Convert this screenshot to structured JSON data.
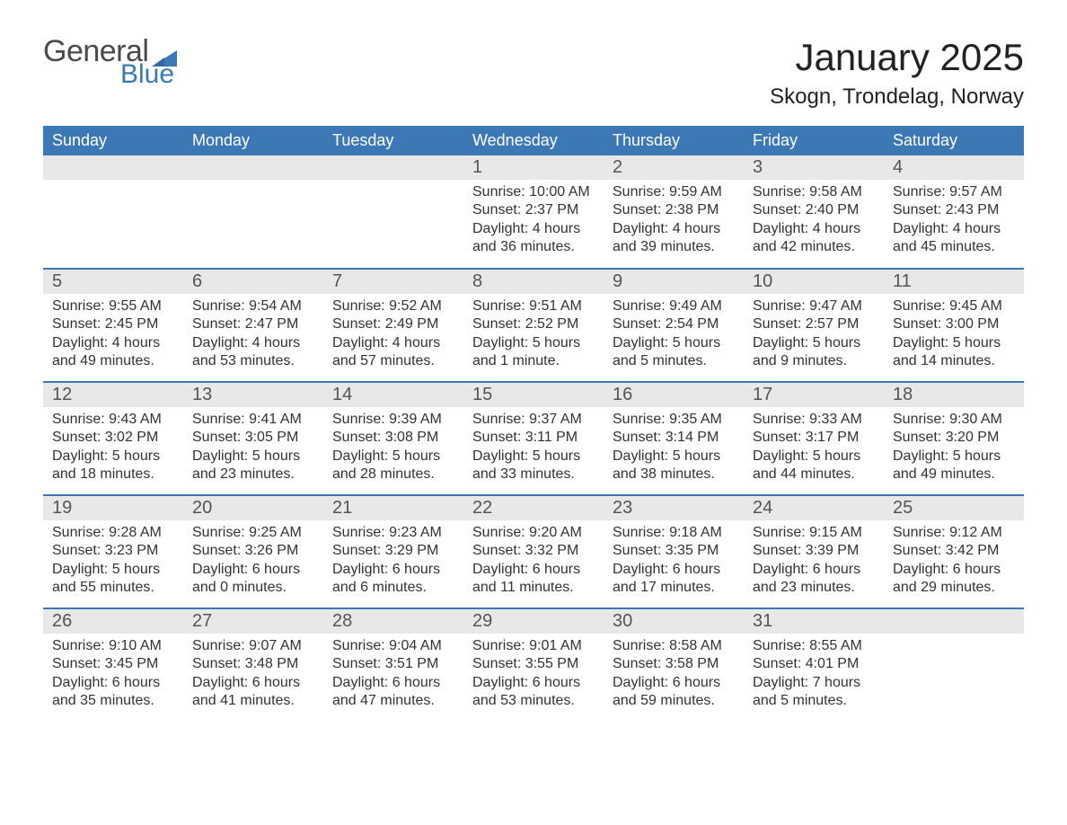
{
  "logo": {
    "word1": "General",
    "word2": "Blue"
  },
  "colors": {
    "header_bg": "#3b78b5",
    "header_text": "#ffffff",
    "row_border": "#3b78b5",
    "daynum_bg": "#e8e8e8",
    "text": "#333333",
    "logo_gray": "#4a4a4a",
    "logo_blue": "#3b78b5",
    "page_bg": "#ffffff"
  },
  "typography": {
    "title_fontsize": 42,
    "location_fontsize": 24,
    "weekday_fontsize": 18,
    "daynum_fontsize": 20,
    "body_fontsize": 16
  },
  "title": {
    "month": "January 2025",
    "location": "Skogn, Trondelag, Norway"
  },
  "weekdays": [
    "Sunday",
    "Monday",
    "Tuesday",
    "Wednesday",
    "Thursday",
    "Friday",
    "Saturday"
  ],
  "weeks": [
    [
      null,
      null,
      null,
      {
        "d": "1",
        "sunrise": "Sunrise: 10:00 AM",
        "sunset": "Sunset: 2:37 PM",
        "dl1": "Daylight: 4 hours",
        "dl2": "and 36 minutes."
      },
      {
        "d": "2",
        "sunrise": "Sunrise: 9:59 AM",
        "sunset": "Sunset: 2:38 PM",
        "dl1": "Daylight: 4 hours",
        "dl2": "and 39 minutes."
      },
      {
        "d": "3",
        "sunrise": "Sunrise: 9:58 AM",
        "sunset": "Sunset: 2:40 PM",
        "dl1": "Daylight: 4 hours",
        "dl2": "and 42 minutes."
      },
      {
        "d": "4",
        "sunrise": "Sunrise: 9:57 AM",
        "sunset": "Sunset: 2:43 PM",
        "dl1": "Daylight: 4 hours",
        "dl2": "and 45 minutes."
      }
    ],
    [
      {
        "d": "5",
        "sunrise": "Sunrise: 9:55 AM",
        "sunset": "Sunset: 2:45 PM",
        "dl1": "Daylight: 4 hours",
        "dl2": "and 49 minutes."
      },
      {
        "d": "6",
        "sunrise": "Sunrise: 9:54 AM",
        "sunset": "Sunset: 2:47 PM",
        "dl1": "Daylight: 4 hours",
        "dl2": "and 53 minutes."
      },
      {
        "d": "7",
        "sunrise": "Sunrise: 9:52 AM",
        "sunset": "Sunset: 2:49 PM",
        "dl1": "Daylight: 4 hours",
        "dl2": "and 57 minutes."
      },
      {
        "d": "8",
        "sunrise": "Sunrise: 9:51 AM",
        "sunset": "Sunset: 2:52 PM",
        "dl1": "Daylight: 5 hours",
        "dl2": "and 1 minute."
      },
      {
        "d": "9",
        "sunrise": "Sunrise: 9:49 AM",
        "sunset": "Sunset: 2:54 PM",
        "dl1": "Daylight: 5 hours",
        "dl2": "and 5 minutes."
      },
      {
        "d": "10",
        "sunrise": "Sunrise: 9:47 AM",
        "sunset": "Sunset: 2:57 PM",
        "dl1": "Daylight: 5 hours",
        "dl2": "and 9 minutes."
      },
      {
        "d": "11",
        "sunrise": "Sunrise: 9:45 AM",
        "sunset": "Sunset: 3:00 PM",
        "dl1": "Daylight: 5 hours",
        "dl2": "and 14 minutes."
      }
    ],
    [
      {
        "d": "12",
        "sunrise": "Sunrise: 9:43 AM",
        "sunset": "Sunset: 3:02 PM",
        "dl1": "Daylight: 5 hours",
        "dl2": "and 18 minutes."
      },
      {
        "d": "13",
        "sunrise": "Sunrise: 9:41 AM",
        "sunset": "Sunset: 3:05 PM",
        "dl1": "Daylight: 5 hours",
        "dl2": "and 23 minutes."
      },
      {
        "d": "14",
        "sunrise": "Sunrise: 9:39 AM",
        "sunset": "Sunset: 3:08 PM",
        "dl1": "Daylight: 5 hours",
        "dl2": "and 28 minutes."
      },
      {
        "d": "15",
        "sunrise": "Sunrise: 9:37 AM",
        "sunset": "Sunset: 3:11 PM",
        "dl1": "Daylight: 5 hours",
        "dl2": "and 33 minutes."
      },
      {
        "d": "16",
        "sunrise": "Sunrise: 9:35 AM",
        "sunset": "Sunset: 3:14 PM",
        "dl1": "Daylight: 5 hours",
        "dl2": "and 38 minutes."
      },
      {
        "d": "17",
        "sunrise": "Sunrise: 9:33 AM",
        "sunset": "Sunset: 3:17 PM",
        "dl1": "Daylight: 5 hours",
        "dl2": "and 44 minutes."
      },
      {
        "d": "18",
        "sunrise": "Sunrise: 9:30 AM",
        "sunset": "Sunset: 3:20 PM",
        "dl1": "Daylight: 5 hours",
        "dl2": "and 49 minutes."
      }
    ],
    [
      {
        "d": "19",
        "sunrise": "Sunrise: 9:28 AM",
        "sunset": "Sunset: 3:23 PM",
        "dl1": "Daylight: 5 hours",
        "dl2": "and 55 minutes."
      },
      {
        "d": "20",
        "sunrise": "Sunrise: 9:25 AM",
        "sunset": "Sunset: 3:26 PM",
        "dl1": "Daylight: 6 hours",
        "dl2": "and 0 minutes."
      },
      {
        "d": "21",
        "sunrise": "Sunrise: 9:23 AM",
        "sunset": "Sunset: 3:29 PM",
        "dl1": "Daylight: 6 hours",
        "dl2": "and 6 minutes."
      },
      {
        "d": "22",
        "sunrise": "Sunrise: 9:20 AM",
        "sunset": "Sunset: 3:32 PM",
        "dl1": "Daylight: 6 hours",
        "dl2": "and 11 minutes."
      },
      {
        "d": "23",
        "sunrise": "Sunrise: 9:18 AM",
        "sunset": "Sunset: 3:35 PM",
        "dl1": "Daylight: 6 hours",
        "dl2": "and 17 minutes."
      },
      {
        "d": "24",
        "sunrise": "Sunrise: 9:15 AM",
        "sunset": "Sunset: 3:39 PM",
        "dl1": "Daylight: 6 hours",
        "dl2": "and 23 minutes."
      },
      {
        "d": "25",
        "sunrise": "Sunrise: 9:12 AM",
        "sunset": "Sunset: 3:42 PM",
        "dl1": "Daylight: 6 hours",
        "dl2": "and 29 minutes."
      }
    ],
    [
      {
        "d": "26",
        "sunrise": "Sunrise: 9:10 AM",
        "sunset": "Sunset: 3:45 PM",
        "dl1": "Daylight: 6 hours",
        "dl2": "and 35 minutes."
      },
      {
        "d": "27",
        "sunrise": "Sunrise: 9:07 AM",
        "sunset": "Sunset: 3:48 PM",
        "dl1": "Daylight: 6 hours",
        "dl2": "and 41 minutes."
      },
      {
        "d": "28",
        "sunrise": "Sunrise: 9:04 AM",
        "sunset": "Sunset: 3:51 PM",
        "dl1": "Daylight: 6 hours",
        "dl2": "and 47 minutes."
      },
      {
        "d": "29",
        "sunrise": "Sunrise: 9:01 AM",
        "sunset": "Sunset: 3:55 PM",
        "dl1": "Daylight: 6 hours",
        "dl2": "and 53 minutes."
      },
      {
        "d": "30",
        "sunrise": "Sunrise: 8:58 AM",
        "sunset": "Sunset: 3:58 PM",
        "dl1": "Daylight: 6 hours",
        "dl2": "and 59 minutes."
      },
      {
        "d": "31",
        "sunrise": "Sunrise: 8:55 AM",
        "sunset": "Sunset: 4:01 PM",
        "dl1": "Daylight: 7 hours",
        "dl2": "and 5 minutes."
      },
      null
    ]
  ]
}
